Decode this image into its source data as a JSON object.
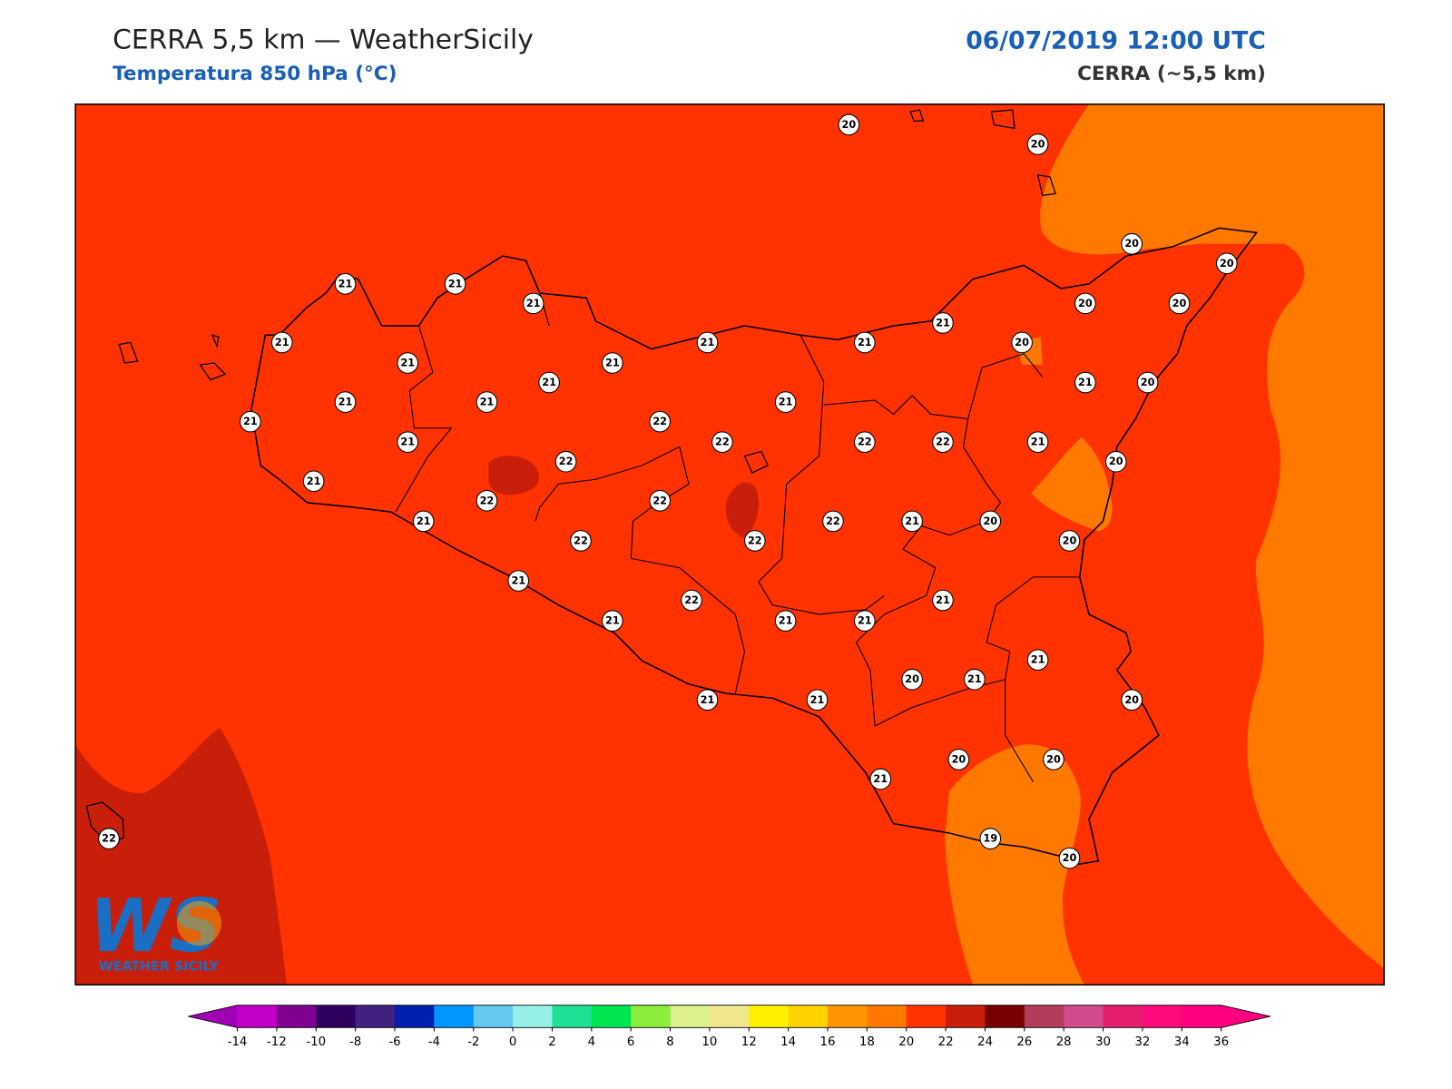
{
  "header": {
    "title": "CERRA 5,5 km — WeatherSicily",
    "subtitle": "Temperatura 850 hPa (°C)",
    "datetime": "06/07/2019 12:00 UTC",
    "model": "CERRA (~5,5 km)"
  },
  "logo": {
    "mark": "WS",
    "name": "WEATHER SICILY"
  },
  "map": {
    "station_labels": [
      20,
      20,
      20,
      20,
      20,
      20,
      21,
      21,
      21,
      21,
      21,
      21,
      21,
      20,
      21,
      21,
      21,
      21,
      20,
      21,
      21,
      21,
      21,
      22,
      21,
      22,
      22,
      22,
      21,
      22,
      20,
      21,
      22,
      22,
      21,
      22,
      21,
      20,
      22,
      22,
      20,
      21,
      21,
      22,
      21,
      21,
      21,
      21,
      20,
      21,
      20,
      21,
      21,
      20,
      20,
      21,
      19,
      20,
      22
    ]
  },
  "colorbar": {
    "ticks": [
      -14,
      -12,
      -10,
      -8,
      -6,
      -4,
      -2,
      0,
      2,
      4,
      6,
      8,
      10,
      12,
      14,
      16,
      18,
      20,
      22,
      24,
      26,
      28,
      30,
      32,
      34,
      36
    ],
    "colors": [
      "#c000c8",
      "#800090",
      "#300060",
      "#402080",
      "#0020b0",
      "#0096ff",
      "#64c8f0",
      "#96f0e6",
      "#1ee196",
      "#00e650",
      "#8ced3c",
      "#dcf08c",
      "#f0e68c",
      "#fff000",
      "#ffd200",
      "#ff9600",
      "#ff7800",
      "#ff3200",
      "#c81e0a",
      "#780000",
      "#b43c5a",
      "#d24b8c",
      "#e61e6e",
      "#ff0a78",
      "#ff0080"
    ],
    "extend_colors": [
      "#a000b4",
      "#ff0080"
    ]
  }
}
